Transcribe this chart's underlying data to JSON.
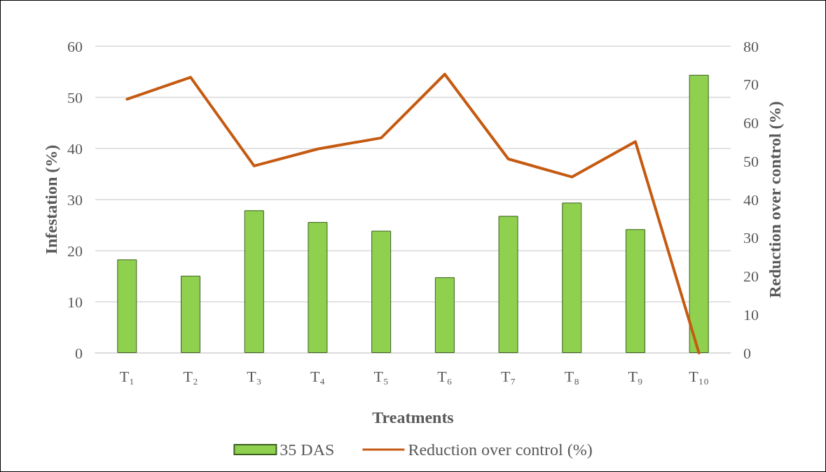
{
  "chart_data": {
    "type": "bar",
    "xlabel": "Treatments",
    "ylabel": "Infestation (%)",
    "y2label": "Reduction over control (%)",
    "categories": [
      "T₁",
      "T₂",
      "T₃",
      "T₄",
      "T₅",
      "T₆",
      "T₇",
      "T₈",
      "T₉",
      "T₁₀"
    ],
    "series": [
      {
        "name": "35 DAS",
        "color": "#8fd14f",
        "values": [
          18.3,
          15.1,
          27.9,
          25.6,
          23.9,
          14.8,
          26.8,
          29.4,
          24.2,
          54.4
        ]
      },
      {
        "name": "Reduction over control (%)",
        "type": "line",
        "axis": "y2",
        "color": "#c55a11",
        "values": [
          66.2,
          71.9,
          48.8,
          53.2,
          56.1,
          72.7,
          50.6,
          45.9,
          55.1,
          0
        ]
      }
    ],
    "ylim": [
      0,
      60
    ],
    "yticks": [
      0,
      10,
      20,
      30,
      40,
      50,
      60
    ],
    "y2lim": [
      0,
      80
    ],
    "y2ticks": [
      0,
      10,
      20,
      30,
      40,
      50,
      60,
      70,
      80
    ],
    "grid": "y",
    "legend": "bottom",
    "marker": "none",
    "line_style": "solid"
  }
}
